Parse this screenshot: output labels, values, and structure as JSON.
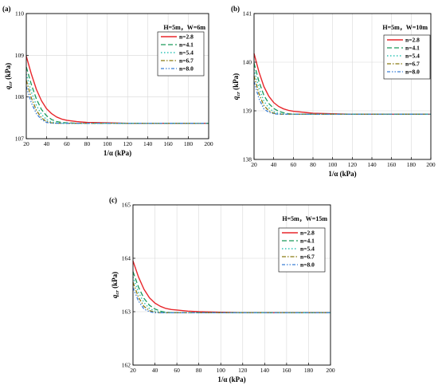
{
  "chart_data": [
    {
      "type": "line",
      "panel": "(a)",
      "annotation": "H=5m，W=6m",
      "xlabel": "1/α (kPa)",
      "ylabel_main": "q",
      "ylabel_sub": "cr",
      "ylabel_unit": " (kPa)",
      "xlim": [
        20,
        200
      ],
      "ylim": [
        107,
        110
      ],
      "xticks": [
        20,
        40,
        60,
        80,
        100,
        120,
        140,
        160,
        180,
        200
      ],
      "yticks": [
        107,
        108,
        109,
        110
      ],
      "x": [
        20,
        25,
        30,
        35,
        40,
        45,
        50,
        55,
        60,
        70,
        80,
        100,
        120,
        160,
        200
      ],
      "series": [
        {
          "name": "n=2.8",
          "values": [
            108.98,
            108.55,
            108.18,
            107.91,
            107.72,
            107.6,
            107.52,
            107.47,
            107.44,
            107.41,
            107.39,
            107.38,
            107.37,
            107.37,
            107.37
          ]
        },
        {
          "name": "n=4.1",
          "values": [
            108.72,
            108.3,
            107.95,
            107.7,
            107.55,
            107.46,
            107.41,
            107.39,
            107.38,
            107.37,
            107.37,
            107.37,
            107.37,
            107.37,
            107.37
          ]
        },
        {
          "name": "n=5.4",
          "values": [
            108.55,
            108.12,
            107.8,
            107.58,
            107.46,
            107.4,
            107.38,
            107.37,
            107.37,
            107.37,
            107.37,
            107.37,
            107.37,
            107.37,
            107.37
          ]
        },
        {
          "name": "n=6.7",
          "values": [
            108.4,
            107.98,
            107.68,
            107.5,
            107.41,
            107.38,
            107.37,
            107.37,
            107.37,
            107.37,
            107.37,
            107.37,
            107.37,
            107.37,
            107.37
          ]
        },
        {
          "name": "n=8.0",
          "values": [
            108.25,
            107.86,
            107.6,
            107.46,
            107.39,
            107.37,
            107.37,
            107.37,
            107.37,
            107.37,
            107.37,
            107.37,
            107.37,
            107.37,
            107.37
          ]
        }
      ]
    },
    {
      "type": "line",
      "panel": "(b)",
      "annotation": "H=5m，W=10m",
      "xlabel": "1/α (kPa)",
      "ylabel_main": "q",
      "ylabel_sub": "cr",
      "ylabel_unit": " (kPa)",
      "xlim": [
        20,
        200
      ],
      "ylim": [
        138,
        141
      ],
      "xticks": [
        20,
        40,
        60,
        80,
        100,
        120,
        140,
        160,
        180,
        200
      ],
      "yticks": [
        138,
        139,
        140,
        141
      ],
      "x": [
        20,
        25,
        30,
        35,
        40,
        45,
        50,
        55,
        60,
        70,
        80,
        100,
        120,
        160,
        200
      ],
      "series": [
        {
          "name": "n=2.8",
          "values": [
            140.18,
            139.8,
            139.5,
            139.3,
            139.17,
            139.09,
            139.04,
            139.01,
            138.99,
            138.97,
            138.95,
            138.94,
            138.93,
            138.93,
            138.93
          ]
        },
        {
          "name": "n=4.1",
          "values": [
            139.98,
            139.6,
            139.32,
            139.15,
            139.05,
            138.99,
            138.96,
            138.94,
            138.93,
            138.93,
            138.93,
            138.93,
            138.93,
            138.93,
            138.93
          ]
        },
        {
          "name": "n=5.4",
          "values": [
            139.85,
            139.47,
            139.2,
            139.06,
            138.98,
            138.95,
            138.93,
            138.93,
            138.93,
            138.93,
            138.93,
            138.93,
            138.93,
            138.93,
            138.93
          ]
        },
        {
          "name": "n=6.7",
          "values": [
            139.72,
            139.35,
            139.11,
            139.0,
            138.95,
            138.93,
            138.93,
            138.93,
            138.93,
            138.93,
            138.93,
            138.93,
            138.93,
            138.93,
            138.93
          ]
        },
        {
          "name": "n=8.0",
          "values": [
            139.6,
            139.25,
            139.04,
            138.97,
            138.94,
            138.93,
            138.93,
            138.93,
            138.93,
            138.93,
            138.93,
            138.93,
            138.93,
            138.93,
            138.93
          ]
        }
      ]
    },
    {
      "type": "line",
      "panel": "(c)",
      "annotation": "H=5m，W=15m",
      "xlabel": "1/α (kPa)",
      "ylabel_main": "q",
      "ylabel_sub": "cr",
      "ylabel_unit": " (kPa)",
      "xlim": [
        20,
        200
      ],
      "ylim": [
        162,
        165
      ],
      "xticks": [
        20,
        40,
        60,
        80,
        100,
        120,
        140,
        160,
        180,
        200
      ],
      "yticks": [
        162,
        163,
        164,
        165
      ],
      "x": [
        20,
        25,
        30,
        35,
        40,
        45,
        50,
        55,
        60,
        70,
        80,
        100,
        120,
        160,
        200
      ],
      "series": [
        {
          "name": "n=2.8",
          "values": [
            163.95,
            163.65,
            163.42,
            163.26,
            163.16,
            163.1,
            163.06,
            163.04,
            163.03,
            163.01,
            163.0,
            162.99,
            162.98,
            162.98,
            162.98
          ]
        },
        {
          "name": "n=4.1",
          "values": [
            163.75,
            163.46,
            163.25,
            163.12,
            163.05,
            163.01,
            162.99,
            162.98,
            162.98,
            162.98,
            162.98,
            162.98,
            162.98,
            162.98,
            162.98
          ]
        },
        {
          "name": "n=5.4",
          "values": [
            163.65,
            163.36,
            163.17,
            163.06,
            163.01,
            162.99,
            162.98,
            162.98,
            162.98,
            162.98,
            162.98,
            162.98,
            162.98,
            162.98,
            162.98
          ]
        },
        {
          "name": "n=6.7",
          "values": [
            163.55,
            163.27,
            163.1,
            163.02,
            162.99,
            162.98,
            162.98,
            162.98,
            162.98,
            162.98,
            162.98,
            162.98,
            162.98,
            162.98,
            162.98
          ]
        },
        {
          "name": "n=8.0",
          "values": [
            163.45,
            163.2,
            163.05,
            163.0,
            162.98,
            162.98,
            162.98,
            162.98,
            162.98,
            162.98,
            162.98,
            162.98,
            162.98,
            162.98,
            162.98
          ]
        }
      ]
    }
  ],
  "series_styles": [
    {
      "color": "#e8262b",
      "dash": "",
      "width": 1.4
    },
    {
      "color": "#1a9a5a",
      "dash": "6,3",
      "width": 1.3
    },
    {
      "color": "#2ec4b6",
      "dash": "1.5,2.5",
      "width": 1.4
    },
    {
      "color": "#8a7a10",
      "dash": "5,2,1.5,2",
      "width": 1.3
    },
    {
      "color": "#3a7fd5",
      "dash": "4,2,1.5,2,1.5,2",
      "width": 1.3
    }
  ]
}
